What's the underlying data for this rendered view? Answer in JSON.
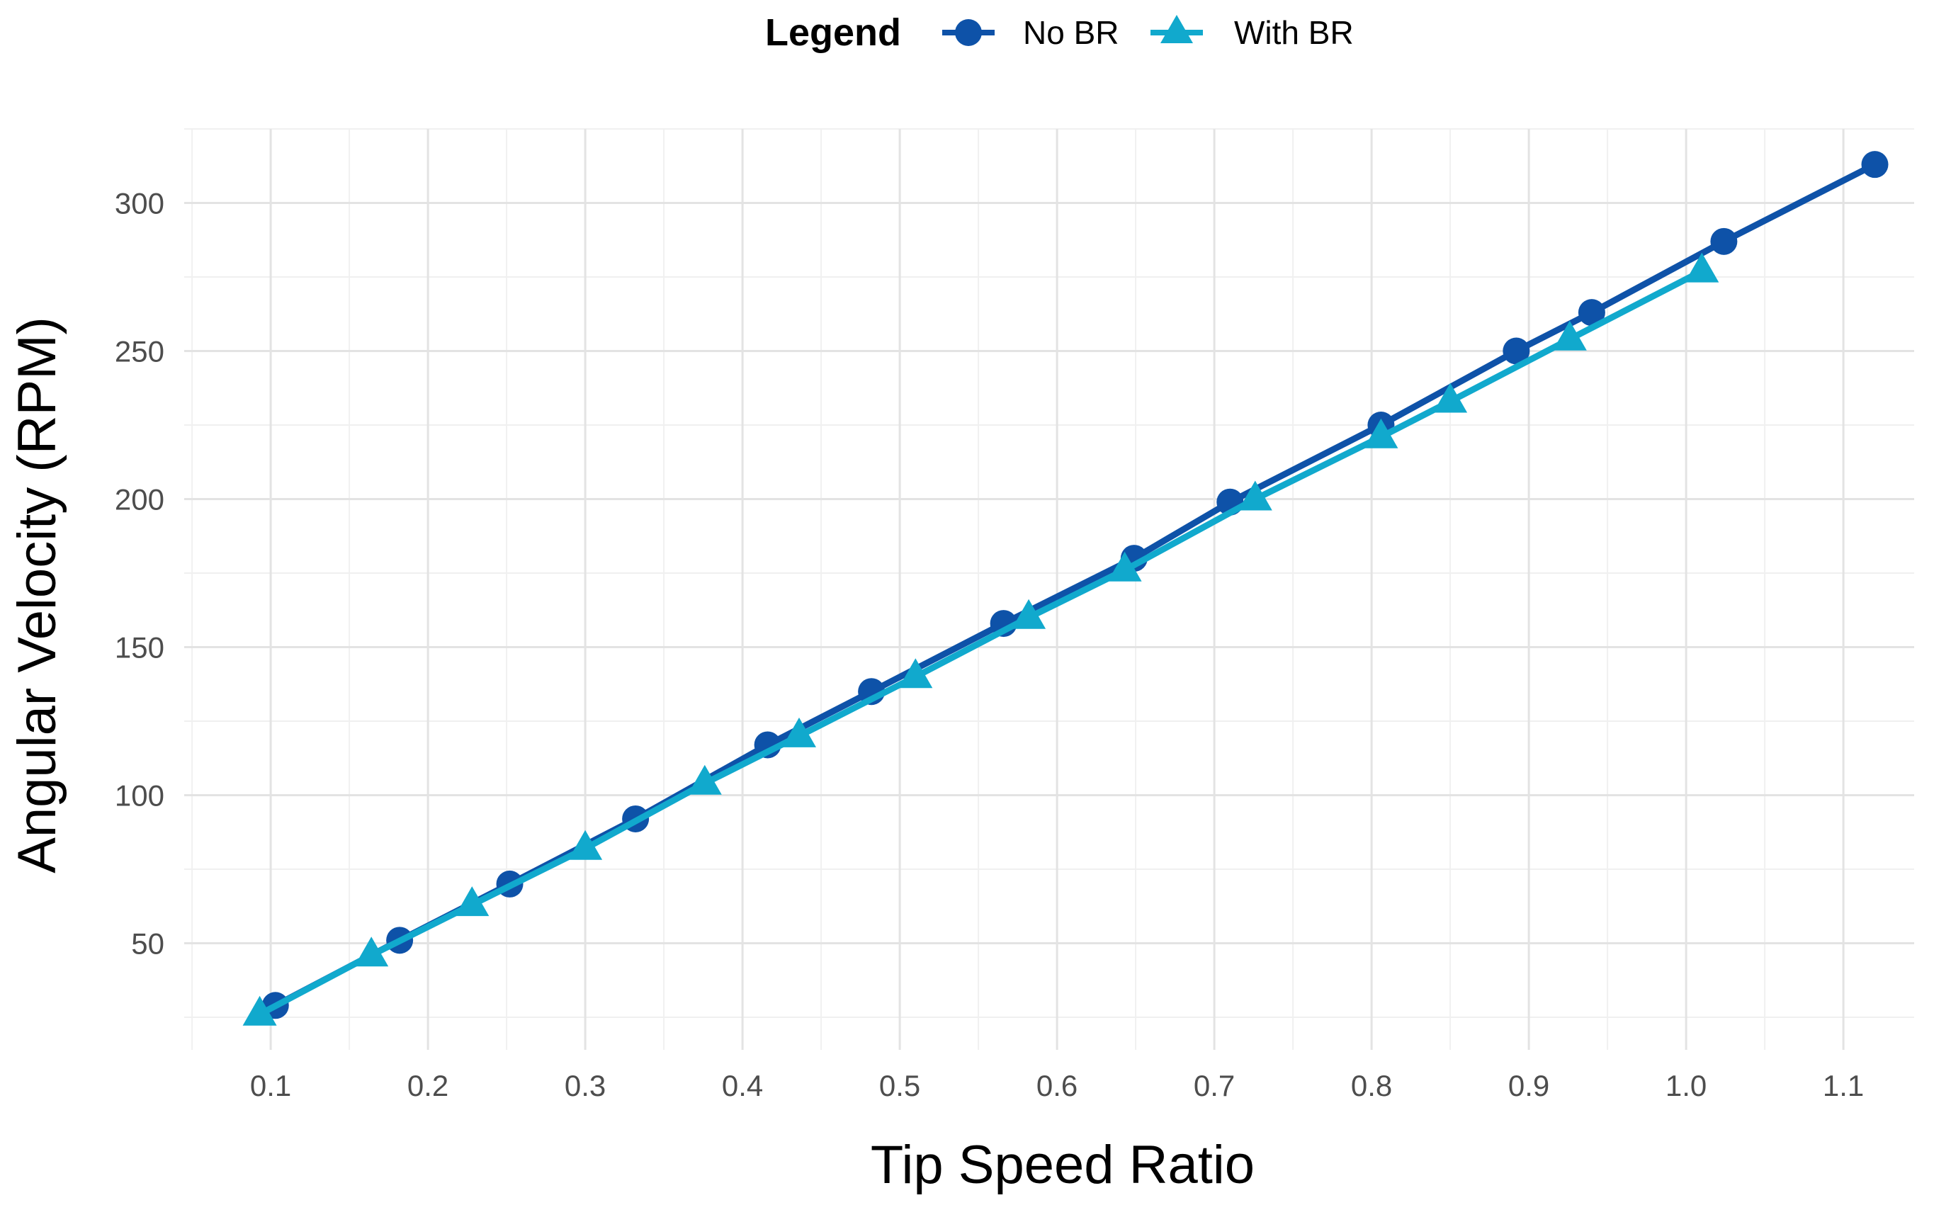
{
  "chart_data": {
    "type": "line",
    "title": "",
    "xlabel": "Tip Speed Ratio",
    "ylabel": "Angular Velocity (RPM)",
    "xlim": [
      0.045,
      1.145
    ],
    "ylim": [
      14,
      325
    ],
    "x_ticks": [
      0.1,
      0.2,
      0.3,
      0.4,
      0.5,
      0.6,
      0.7,
      0.8,
      0.9,
      1.0,
      1.1
    ],
    "x_tick_labels": [
      "0.1",
      "0.2",
      "0.3",
      "0.4",
      "0.5",
      "0.6",
      "0.7",
      "0.8",
      "0.9",
      "1.0",
      "1.1"
    ],
    "y_ticks": [
      50,
      100,
      150,
      200,
      250,
      300
    ],
    "y_tick_labels": [
      "50",
      "100",
      "150",
      "200",
      "250",
      "300"
    ],
    "grid": true,
    "legend": {
      "title": "Legend",
      "position": "top"
    },
    "series": [
      {
        "name": "No BR",
        "marker": "circle",
        "color": "#0e52a8",
        "x": [
          0.103,
          0.182,
          0.252,
          0.332,
          0.416,
          0.482,
          0.566,
          0.649,
          0.71,
          0.806,
          0.892,
          0.94,
          1.024,
          1.12
        ],
        "y": [
          29,
          51,
          70,
          92,
          117,
          135,
          158,
          180,
          199,
          225,
          250,
          263,
          287,
          313
        ]
      },
      {
        "name": "With BR",
        "marker": "triangle",
        "color": "#11a9cd",
        "x": [
          0.093,
          0.164,
          0.228,
          0.3,
          0.376,
          0.436,
          0.51,
          0.582,
          0.643,
          0.726,
          0.806,
          0.85,
          0.926,
          1.01
        ],
        "y": [
          26,
          46,
          63,
          82,
          104,
          120,
          140,
          160,
          176,
          200,
          221,
          233,
          254,
          277
        ]
      }
    ]
  }
}
